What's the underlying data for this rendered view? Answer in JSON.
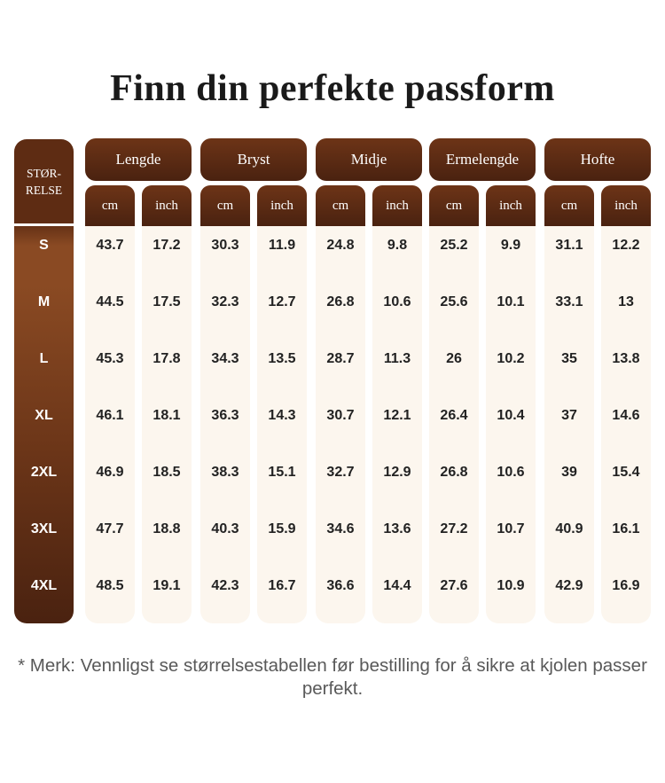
{
  "title": "Finn din perfekte passform",
  "table": {
    "size_header_line1": "STØR-",
    "size_header_line2": "RELSE",
    "groups": [
      "Lengde",
      "Bryst",
      "Midje",
      "Ermelengde",
      "Hofte"
    ],
    "units": [
      "cm",
      "inch"
    ],
    "sizes": [
      "S",
      "M",
      "L",
      "XL",
      "2XL",
      "3XL",
      "4XL"
    ],
    "rows": [
      [
        "43.7",
        "17.2",
        "30.3",
        "11.9",
        "24.8",
        "9.8",
        "25.2",
        "9.9",
        "31.1",
        "12.2"
      ],
      [
        "44.5",
        "17.5",
        "32.3",
        "12.7",
        "26.8",
        "10.6",
        "25.6",
        "10.1",
        "33.1",
        "13"
      ],
      [
        "45.3",
        "17.8",
        "34.3",
        "13.5",
        "28.7",
        "11.3",
        "26",
        "10.2",
        "35",
        "13.8"
      ],
      [
        "46.1",
        "18.1",
        "36.3",
        "14.3",
        "30.7",
        "12.1",
        "26.4",
        "10.4",
        "37",
        "14.6"
      ],
      [
        "46.9",
        "18.5",
        "38.3",
        "15.1",
        "32.7",
        "12.9",
        "26.8",
        "10.6",
        "39",
        "15.4"
      ],
      [
        "47.7",
        "18.8",
        "40.3",
        "15.9",
        "34.6",
        "13.6",
        "27.2",
        "10.7",
        "40.9",
        "16.1"
      ],
      [
        "48.5",
        "19.1",
        "42.3",
        "16.7",
        "36.6",
        "14.4",
        "27.6",
        "10.9",
        "42.9",
        "16.9"
      ]
    ]
  },
  "note": "* Merk: Vennligst se størrelsestabellen før bestilling for å sikre at kjolen passer perfekt.",
  "colors": {
    "header_dark": "#4a2210",
    "header_light": "#6d3417",
    "column_bg": "#fcf6ee",
    "text": "#222222"
  }
}
